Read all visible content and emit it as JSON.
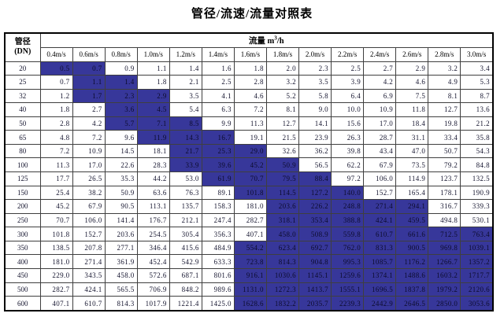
{
  "page_title": "管径/流速/流量对照表",
  "table": {
    "corner_header": {
      "line1": "管径",
      "line2": "(DN)"
    },
    "flow_header": {
      "prefix": "流量 m",
      "sup": "3",
      "suffix": "/h"
    },
    "speed_headers": [
      "0.4m/s",
      "0.6m/s",
      "0.8m/s",
      "1.0m/s",
      "1.2m/s",
      "1.4m/s",
      "1.6m/s",
      "1.8m/s",
      "2.0m/s",
      "2.2m/s",
      "2.4m/s",
      "2.6m/s",
      "2.8m/s",
      "3.0m/s"
    ],
    "highlight_color": "#37379A",
    "rows": [
      {
        "dn": "20",
        "values": [
          "0.5",
          "0.7",
          "0.9",
          "1.1",
          "1.4",
          "1.6",
          "1.8",
          "2.0",
          "2.3",
          "2.5",
          "2.7",
          "2.9",
          "3.2",
          "3.4"
        ],
        "highlighted_columns": [
          0,
          1
        ]
      },
      {
        "dn": "25",
        "values": [
          "0.7",
          "1.1",
          "1.4",
          "1.8",
          "2.1",
          "2.5",
          "2.8",
          "3.2",
          "3.5",
          "3.9",
          "4.2",
          "4.6",
          "4.9",
          "5.3"
        ],
        "highlighted_columns": [
          1,
          2
        ]
      },
      {
        "dn": "32",
        "values": [
          "1.2",
          "1.7",
          "2.3",
          "2.9",
          "3.5",
          "4.1",
          "4.6",
          "5.2",
          "5.8",
          "6.4",
          "6.9",
          "7.5",
          "8.1",
          "8.7"
        ],
        "highlighted_columns": [
          1,
          2,
          3
        ]
      },
      {
        "dn": "40",
        "values": [
          "1.8",
          "2.7",
          "3.6",
          "4.5",
          "5.4",
          "6.3",
          "7.2",
          "8.1",
          "9.0",
          "10.0",
          "10.9",
          "11.8",
          "12.7",
          "13.6"
        ],
        "highlighted_columns": [
          2,
          3
        ]
      },
      {
        "dn": "50",
        "values": [
          "2.8",
          "4.2",
          "5.7",
          "7.1",
          "8.5",
          "9.9",
          "11.3",
          "12.7",
          "14.1",
          "15.6",
          "17.0",
          "18.4",
          "19.8",
          "21.2"
        ],
        "highlighted_columns": [
          2,
          3,
          4
        ]
      },
      {
        "dn": "65",
        "values": [
          "4.8",
          "7.2",
          "9.6",
          "11.9",
          "14.3",
          "16.7",
          "19.1",
          "21.5",
          "23.9",
          "26.3",
          "28.7",
          "31.1",
          "33.4",
          "35.8"
        ],
        "highlighted_columns": [
          3,
          4,
          5
        ]
      },
      {
        "dn": "80",
        "values": [
          "7.2",
          "10.9",
          "14.5",
          "18.1",
          "21.7",
          "25.3",
          "29.0",
          "32.6",
          "36.2",
          "39.8",
          "43.4",
          "47.0",
          "50.7",
          "54.3"
        ],
        "highlighted_columns": [
          4,
          5,
          6
        ]
      },
      {
        "dn": "100",
        "values": [
          "11.3",
          "17.0",
          "22.6",
          "28.3",
          "33.9",
          "39.6",
          "45.2",
          "50.9",
          "56.5",
          "62.2",
          "67.9",
          "73.5",
          "79.2",
          "84.8"
        ],
        "highlighted_columns": [
          4,
          5,
          6,
          7
        ]
      },
      {
        "dn": "125",
        "values": [
          "17.7",
          "26.5",
          "35.3",
          "44.2",
          "53.0",
          "61.9",
          "70.7",
          "79.5",
          "88.4",
          "97.2",
          "106.0",
          "114.9",
          "123.7",
          "132.5"
        ],
        "highlighted_columns": [
          5,
          6,
          7,
          8
        ]
      },
      {
        "dn": "150",
        "values": [
          "25.4",
          "38.2",
          "50.9",
          "63.6",
          "76.3",
          "89.1",
          "101.8",
          "114.5",
          "127.2",
          "140.0",
          "152.7",
          "165.4",
          "178.1",
          "190.9"
        ],
        "highlighted_columns": [
          6,
          7,
          8,
          9
        ]
      },
      {
        "dn": "200",
        "values": [
          "45.2",
          "67.9",
          "90.5",
          "113.1",
          "135.7",
          "158.3",
          "181.0",
          "203.6",
          "226.2",
          "248.8",
          "271.4",
          "294.1",
          "316.7",
          "339.3"
        ],
        "highlighted_columns": [
          7,
          8,
          9,
          10,
          11
        ]
      },
      {
        "dn": "250",
        "values": [
          "70.7",
          "106.0",
          "141.4",
          "176.7",
          "212.1",
          "247.4",
          "282.7",
          "318.1",
          "353.4",
          "388.8",
          "424.1",
          "459.5",
          "494.8",
          "530.1"
        ],
        "highlighted_columns": [
          7,
          8,
          9,
          10,
          11
        ]
      },
      {
        "dn": "300",
        "values": [
          "101.8",
          "152.7",
          "203.6",
          "254.5",
          "305.4",
          "356.3",
          "407.1",
          "458.0",
          "508.9",
          "559.8",
          "610.7",
          "661.6",
          "712.5",
          "763.4"
        ],
        "highlighted_columns": [
          7,
          8,
          9,
          10,
          11,
          12,
          13
        ]
      },
      {
        "dn": "350",
        "values": [
          "138.5",
          "207.8",
          "277.1",
          "346.4",
          "415.6",
          "484.9",
          "554.2",
          "623.4",
          "692.7",
          "762.0",
          "831.3",
          "900.5",
          "969.8",
          "1039.1"
        ],
        "highlighted_columns": [
          6,
          7,
          8,
          9,
          10,
          11,
          12,
          13
        ]
      },
      {
        "dn": "400",
        "values": [
          "181.0",
          "271.4",
          "361.9",
          "452.4",
          "542.9",
          "633.3",
          "723.8",
          "814.3",
          "904.8",
          "995.3",
          "1085.7",
          "1176.2",
          "1266.7",
          "1357.2"
        ],
        "highlighted_columns": [
          6,
          7,
          8,
          9,
          10,
          11,
          12,
          13
        ]
      },
      {
        "dn": "450",
        "values": [
          "229.0",
          "343.5",
          "458.0",
          "572.6",
          "687.1",
          "801.6",
          "916.1",
          "1030.6",
          "1145.1",
          "1259.6",
          "1374.1",
          "1488.6",
          "1603.2",
          "1717.7"
        ],
        "highlighted_columns": [
          6,
          7,
          8,
          9,
          10,
          11,
          12,
          13
        ]
      },
      {
        "dn": "500",
        "values": [
          "282.7",
          "424.1",
          "565.5",
          "706.9",
          "848.2",
          "989.6",
          "1131.0",
          "1272.3",
          "1413.7",
          "1555.1",
          "1696.5",
          "1837.8",
          "1979.2",
          "2120.6"
        ],
        "highlighted_columns": [
          6,
          7,
          8,
          9,
          10,
          11,
          12,
          13
        ]
      },
      {
        "dn": "600",
        "values": [
          "407.1",
          "610.7",
          "814.3",
          "1017.9",
          "1221.4",
          "1425.0",
          "1628.6",
          "1832.2",
          "2035.7",
          "2239.3",
          "2442.9",
          "2646.5",
          "2850.0",
          "3053.6"
        ],
        "highlighted_columns": [
          6,
          7,
          8,
          9,
          10,
          11,
          12,
          13
        ]
      }
    ]
  }
}
